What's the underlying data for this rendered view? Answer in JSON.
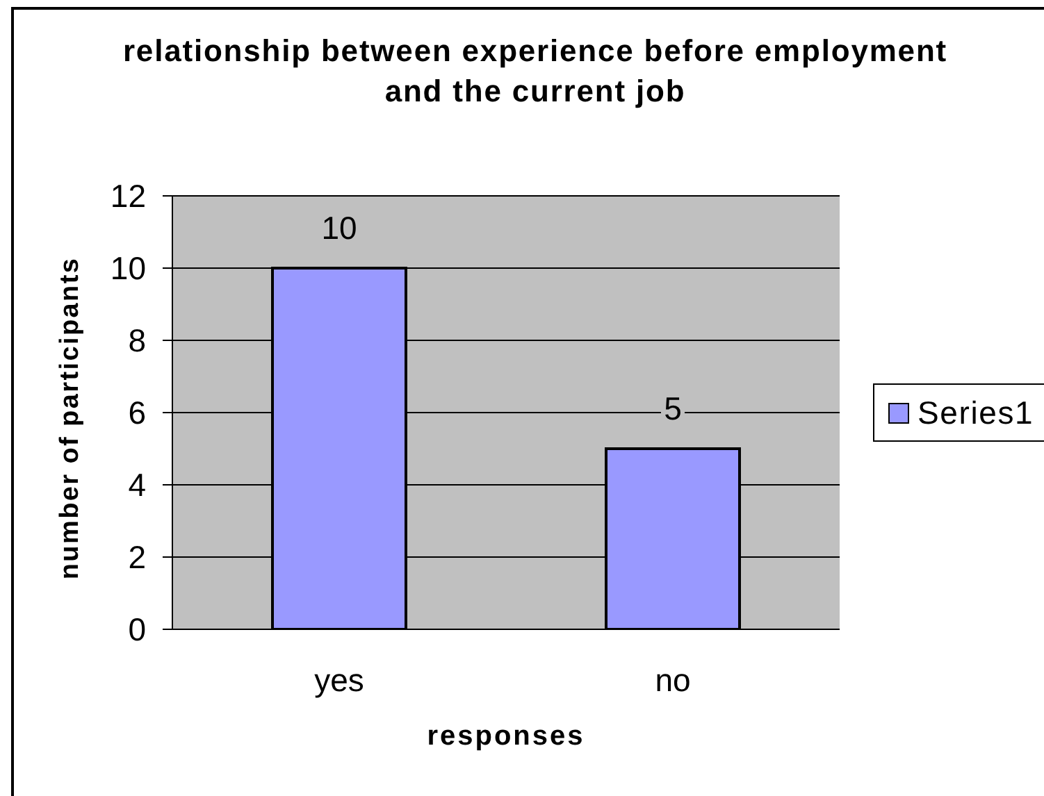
{
  "chart_data": {
    "type": "bar",
    "title": "relationship between experience before employment and the current job",
    "xlabel": "responses",
    "ylabel": "number of participants",
    "categories": [
      "yes",
      "no"
    ],
    "series": [
      {
        "name": "Series1",
        "color": "#9999ff",
        "values": [
          10,
          5
        ]
      }
    ],
    "ylim": [
      0,
      12
    ],
    "yticks": [
      0,
      2,
      4,
      6,
      8,
      10,
      12
    ],
    "grid": "y",
    "legend": "right",
    "data_labels": true
  }
}
